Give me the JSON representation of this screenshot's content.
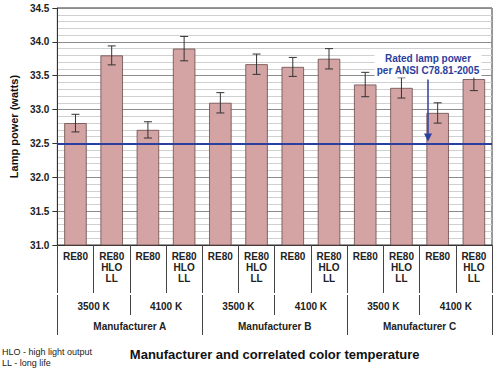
{
  "chart_data": {
    "type": "bar",
    "y_label": "Lamp power (watts)",
    "x_label": "Manufacturer and correlated color temperature",
    "categories": [
      "RE80",
      "RE80\nHLO\nLL",
      "RE80",
      "RE80\nHLO\nLL",
      "RE80",
      "RE80\nHLO\nLL",
      "RE80",
      "RE80\nHLO\nLL",
      "RE80",
      "RE80\nHLO\nLL",
      "RE80",
      "RE80\nHLO\nLL"
    ],
    "temperatures": [
      "3500 K",
      "4100 K",
      "3500 K",
      "4100 K",
      "3500 K",
      "4100 K"
    ],
    "manufacturers": [
      "Manufacturer A",
      "Manufacturer B",
      "Manufacturer C"
    ],
    "values": [
      32.8,
      33.8,
      32.7,
      33.9,
      33.1,
      33.67,
      33.63,
      33.75,
      33.37,
      33.32,
      32.95,
      33.45
    ],
    "error": [
      0.13,
      0.14,
      0.12,
      0.18,
      0.15,
      0.15,
      0.14,
      0.15,
      0.18,
      0.15,
      0.15,
      0.17
    ],
    "color": "#d4a3a3",
    "ylim": [
      31.0,
      34.5
    ],
    "yticks": [
      {
        "value": 31.0,
        "label": "31.0"
      },
      {
        "value": 31.5,
        "label": "31.5"
      },
      {
        "value": 32.0,
        "label": "32.0"
      },
      {
        "value": 32.5,
        "label": "32.5"
      },
      {
        "value": 33.0,
        "label": "33.0"
      },
      {
        "value": 33.5,
        "label": "33.5"
      },
      {
        "value": 34.0,
        "label": "34.0"
      },
      {
        "value": 34.5,
        "label": "34.5"
      }
    ],
    "grid": true,
    "reference_line": {
      "value": 32.5,
      "label": "Rated lamp power\nper ANSI C78.81-2005",
      "color": "#2b3f9e"
    },
    "notes": [
      "HLO - high light output",
      "LL - long life"
    ]
  }
}
